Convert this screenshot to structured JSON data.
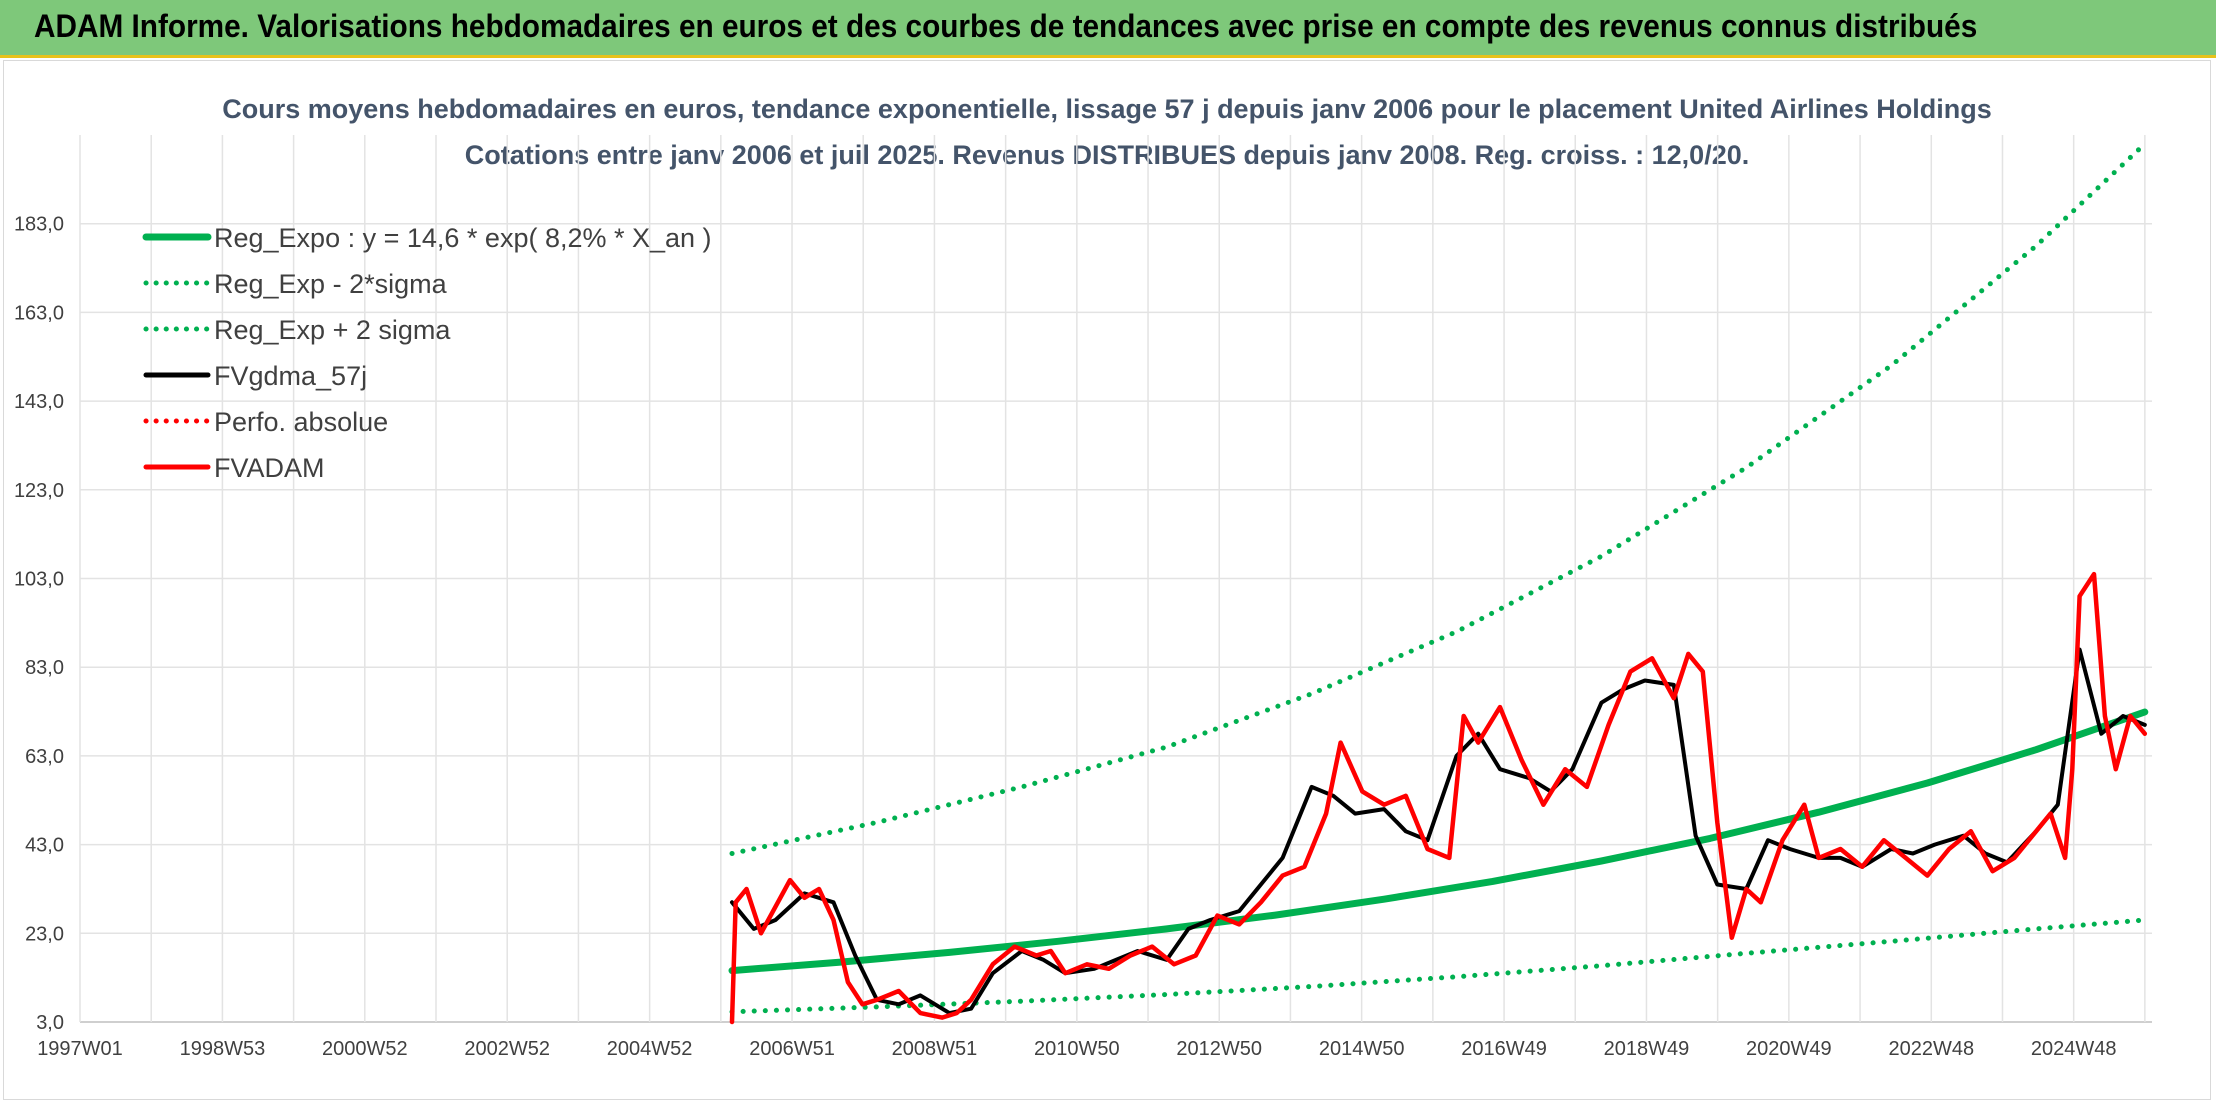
{
  "banner": {
    "title": "ADAM Informe. Valorisations hebdomadaires en euros et des courbes de tendances avec prise en compte des revenus connus distribués"
  },
  "chart_data": {
    "type": "line",
    "title": "Cours moyens hebdomadaires en euros, tendance exponentielle, lissage 57 j depuis janv 2006 pour le placement United Airlines Holdings",
    "subtitle": "Cotations entre janv 2006 et juil 2025. Revenus DISTRIBUES depuis janv 2008. Reg. croiss. : 12,0/20.",
    "xlabel": "",
    "ylabel": "",
    "x_ticks": [
      "1997W01",
      "1998W53",
      "2000W52",
      "2002W52",
      "2004W52",
      "2006W51",
      "2008W51",
      "2010W50",
      "2012W50",
      "2014W50",
      "2016W49",
      "2018W49",
      "2020W49",
      "2022W48",
      "2024W48"
    ],
    "y_ticks": [
      "3,0",
      "23,0",
      "43,0",
      "63,0",
      "83,0",
      "103,0",
      "123,0",
      "143,0",
      "163,0",
      "183,0"
    ],
    "xlim": [
      1997.0,
      2025.6
    ],
    "ylim": [
      3,
      203
    ],
    "grid": true,
    "legend_position": "top-left",
    "series": [
      {
        "name": "Reg_Expo : y = 14,6 * exp( 8,2% *  X_an )",
        "color": "#00b050",
        "style": "solid",
        "x": [
          2006.0,
          2007.5,
          2009.0,
          2010.5,
          2012.0,
          2013.5,
          2015.0,
          2016.5,
          2018.0,
          2019.5,
          2021.0,
          2022.5,
          2024.0,
          2025.5
        ],
        "y": [
          14.6,
          16.5,
          18.7,
          21.2,
          24.0,
          27.1,
          30.7,
          34.7,
          39.3,
          44.4,
          50.3,
          56.9,
          64.4,
          72.9
        ]
      },
      {
        "name": "Reg_Exp - 2*sigma",
        "color": "#00b050",
        "style": "dotted",
        "x": [
          2006.0,
          2008.0,
          2010.0,
          2012.0,
          2014.0,
          2016.0,
          2018.0,
          2020.0,
          2022.0,
          2024.0,
          2025.5
        ],
        "y": [
          5.3,
          6.4,
          7.7,
          9.2,
          11.0,
          13.2,
          15.7,
          18.5,
          21.2,
          24.0,
          26.0
        ]
      },
      {
        "name": "Reg_Exp + 2 sigma",
        "color": "#00b050",
        "style": "dotted",
        "x": [
          2006.0,
          2008.0,
          2010.0,
          2012.0,
          2014.0,
          2016.0,
          2018.0,
          2020.0,
          2022.0,
          2024.0,
          2025.5
        ],
        "y": [
          41.0,
          48.0,
          56.0,
          65.0,
          77.0,
          91.0,
          108.0,
          128.0,
          151.0,
          178.0,
          201.0
        ]
      },
      {
        "name": "FVgdma_57j",
        "color": "#000000",
        "style": "solid",
        "x": [
          2006.0,
          2006.3,
          2006.6,
          2007.0,
          2007.4,
          2007.7,
          2008.0,
          2008.3,
          2008.6,
          2009.0,
          2009.3,
          2009.6,
          2010.0,
          2010.3,
          2010.6,
          2011.0,
          2011.3,
          2011.6,
          2012.0,
          2012.3,
          2012.6,
          2013.0,
          2013.3,
          2013.6,
          2014.0,
          2014.3,
          2014.6,
          2015.0,
          2015.3,
          2015.6,
          2016.0,
          2016.3,
          2016.6,
          2017.0,
          2017.3,
          2017.6,
          2018.0,
          2018.3,
          2018.6,
          2019.0,
          2019.3,
          2019.6,
          2020.0,
          2020.3,
          2020.6,
          2021.0,
          2021.3,
          2021.6,
          2022.0,
          2022.3,
          2022.6,
          2023.0,
          2023.3,
          2023.6,
          2024.0,
          2024.3,
          2024.6,
          2024.9,
          2025.2,
          2025.5
        ],
        "y": [
          30,
          24,
          26,
          32,
          30,
          18,
          8,
          7,
          9,
          5,
          6,
          14,
          19,
          17,
          14,
          15,
          17,
          19,
          17,
          24,
          26,
          28,
          34,
          40,
          56,
          54,
          50,
          51,
          46,
          44,
          63,
          68,
          60,
          58,
          55,
          60,
          75,
          78,
          80,
          79,
          45,
          34,
          33,
          44,
          42,
          40,
          40,
          38,
          42,
          41,
          43,
          45,
          41,
          39,
          46,
          52,
          87,
          68,
          72,
          70
        ]
      },
      {
        "name": "Perfo. absolue",
        "color": "#ff0000",
        "style": "dotted",
        "x": [],
        "y": []
      },
      {
        "name": "FVADAM",
        "color": "#ff0000",
        "style": "solid",
        "x": [
          2006.0,
          2006.05,
          2006.2,
          2006.4,
          2006.6,
          2006.8,
          2007.0,
          2007.2,
          2007.4,
          2007.6,
          2007.8,
          2008.0,
          2008.3,
          2008.6,
          2008.9,
          2009.1,
          2009.3,
          2009.6,
          2009.9,
          2010.2,
          2010.4,
          2010.6,
          2010.9,
          2011.2,
          2011.5,
          2011.8,
          2012.1,
          2012.4,
          2012.7,
          2013.0,
          2013.3,
          2013.6,
          2013.9,
          2014.2,
          2014.4,
          2014.7,
          2015.0,
          2015.3,
          2015.6,
          2015.9,
          2016.1,
          2016.3,
          2016.6,
          2016.9,
          2017.2,
          2017.5,
          2017.8,
          2018.1,
          2018.4,
          2018.7,
          2019.0,
          2019.2,
          2019.4,
          2019.6,
          2019.8,
          2020.0,
          2020.2,
          2020.5,
          2020.8,
          2021.0,
          2021.3,
          2021.6,
          2021.9,
          2022.2,
          2022.5,
          2022.8,
          2023.1,
          2023.4,
          2023.7,
          2024.0,
          2024.2,
          2024.4,
          2024.5,
          2024.6,
          2024.8,
          2024.95,
          2025.1,
          2025.3,
          2025.5
        ],
        "y": [
          3,
          30,
          33,
          23,
          29,
          35,
          31,
          33,
          26,
          12,
          7,
          8,
          10,
          5,
          4,
          5,
          8,
          16,
          20,
          18,
          19,
          14,
          16,
          15,
          18,
          20,
          16,
          18,
          27,
          25,
          30,
          36,
          38,
          50,
          66,
          55,
          52,
          54,
          42,
          40,
          72,
          66,
          74,
          62,
          52,
          60,
          56,
          70,
          82,
          85,
          76,
          86,
          82,
          48,
          22,
          33,
          30,
          44,
          52,
          40,
          42,
          38,
          44,
          40,
          36,
          42,
          46,
          37,
          40,
          46,
          50,
          40,
          60,
          99,
          104,
          72,
          60,
          72,
          68
        ]
      }
    ]
  }
}
